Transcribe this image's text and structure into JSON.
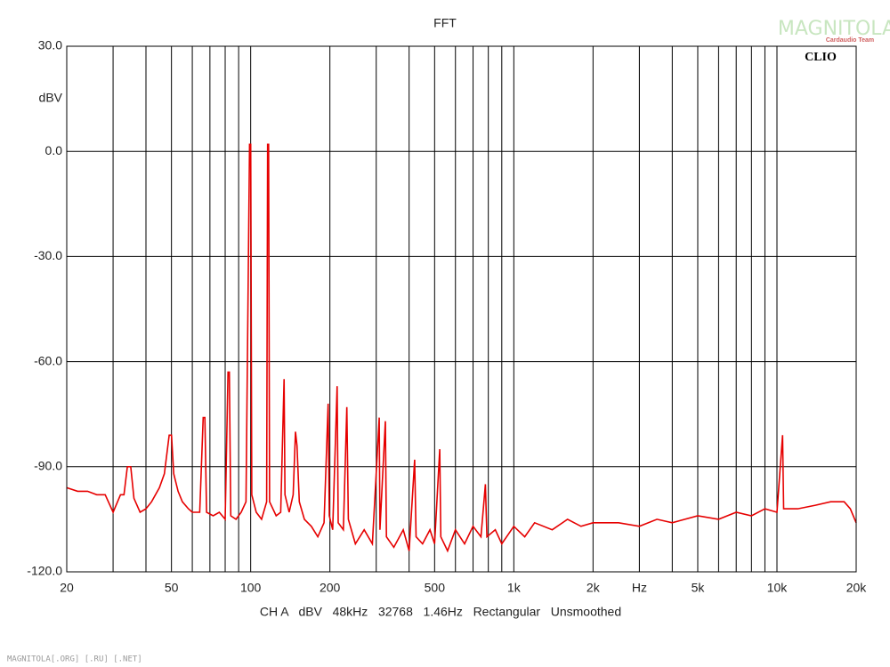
{
  "chart_data": {
    "type": "line",
    "title": "FFT",
    "y_label": "dBV",
    "footer": "CH A   dBV   48kHz   32768   1.46Hz   Rectangular   Unsmoothed",
    "logo": "CLIO",
    "watermark": "MAGNITOLA",
    "watermark_sub": "Cardaudio Team",
    "footer_watermark": "MAGNITOLA[.ORG] [.RU] [.NET]",
    "xscale": "log",
    "grid": true,
    "color": "#e60000",
    "xlim": [
      20,
      20000
    ],
    "ylim": [
      -120,
      30
    ],
    "xticks": [
      20,
      50,
      100,
      200,
      500,
      {
        "value": 1000,
        "label": "1k"
      },
      {
        "value": 2000,
        "label": "2k"
      },
      {
        "value": 3000,
        "label": "Hz"
      },
      {
        "value": 5000,
        "label": "5k"
      },
      {
        "value": 10000,
        "label": "10k"
      },
      {
        "value": 20000,
        "label": "20k"
      }
    ],
    "xminorticks": [
      30,
      40,
      60,
      70,
      80,
      90,
      300,
      400,
      600,
      700,
      800,
      900,
      4000,
      6000,
      7000,
      8000,
      9000
    ],
    "yticks": [
      {
        "value": 30,
        "label": "30.0"
      },
      {
        "value": 0,
        "label": "0.0"
      },
      {
        "value": -30,
        "label": "-30.0"
      },
      {
        "value": -60,
        "label": "-60.0"
      },
      {
        "value": -90,
        "label": "-90.0"
      },
      {
        "value": -120,
        "label": "-120.0"
      }
    ],
    "x": [
      20,
      22,
      24,
      26,
      28,
      30,
      32,
      33,
      34,
      35,
      36,
      38,
      40,
      42,
      45,
      47,
      49,
      50,
      51,
      53,
      55,
      58,
      60,
      64,
      66,
      67,
      68,
      72,
      76,
      80,
      82,
      83,
      84,
      88,
      92,
      96,
      99,
      100,
      101,
      105,
      110,
      115,
      116,
      117,
      118,
      125,
      130,
      134,
      135,
      140,
      145,
      148,
      150,
      153,
      160,
      170,
      180,
      190,
      197,
      199,
      205,
      213,
      215,
      225,
      232,
      235,
      250,
      270,
      290,
      308,
      310,
      325,
      328,
      350,
      380,
      400,
      420,
      425,
      450,
      480,
      500,
      523,
      528,
      560,
      600,
      650,
      700,
      750,
      780,
      790,
      850,
      900,
      1000,
      1100,
      1200,
      1400,
      1600,
      1800,
      2000,
      2500,
      3000,
      3500,
      4000,
      5000,
      6000,
      7000,
      8000,
      9000,
      10000,
      10500,
      10600,
      11000,
      12000,
      14000,
      16000,
      18000,
      19000,
      20000
    ],
    "values": [
      -96,
      -97,
      -97,
      -98,
      -98,
      -103,
      -98,
      -98,
      -90,
      -90,
      -99,
      -103,
      -102,
      -100,
      -96,
      -92,
      -81,
      -81,
      -92,
      -97,
      -100,
      -102,
      -103,
      -103,
      -76,
      -76,
      -103,
      -104,
      -103,
      -105,
      -63,
      -63,
      -104,
      -105,
      -103,
      -100,
      2,
      2,
      -98,
      -103,
      -105,
      -100,
      2,
      2,
      -100,
      -104,
      -103,
      -65,
      -98,
      -103,
      -98,
      -80,
      -84,
      -100,
      -105,
      -107,
      -110,
      -106,
      -72,
      -104,
      -108,
      -67,
      -106,
      -108,
      -73,
      -105,
      -112,
      -108,
      -112,
      -76,
      -108,
      -77,
      -110,
      -113,
      -108,
      -114,
      -88,
      -110,
      -112,
      -108,
      -112,
      -85,
      -110,
      -114,
      -108,
      -112,
      -107,
      -110,
      -95,
      -110,
      -108,
      -112,
      -107,
      -110,
      -106,
      -108,
      -105,
      -107,
      -106,
      -106,
      -107,
      -105,
      -106,
      -104,
      -105,
      -103,
      -104,
      -102,
      -103,
      -81,
      -102,
      -102,
      -102,
      -101,
      -100,
      -100,
      -102,
      -106
    ]
  }
}
